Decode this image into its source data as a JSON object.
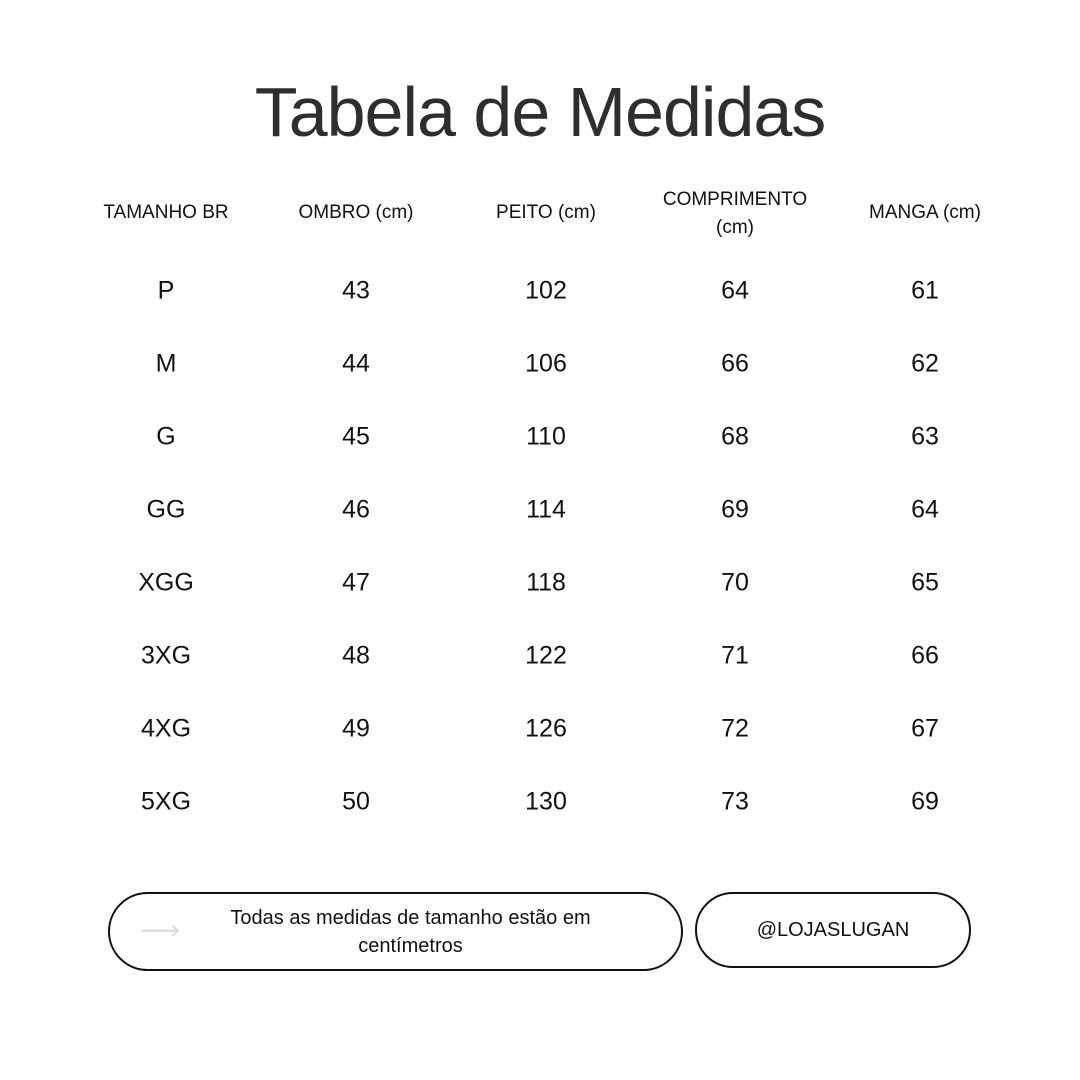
{
  "title": "Tabela de Medidas",
  "table": {
    "headers": [
      "TAMANHO BR",
      "OMBRO (cm)",
      "PEITO (cm)",
      "COMPRIMENTO (cm)",
      "MANGA (cm)"
    ],
    "rows": [
      [
        "P",
        "43",
        "102",
        "64",
        "61"
      ],
      [
        "M",
        "44",
        "106",
        "66",
        "62"
      ],
      [
        "G",
        "45",
        "110",
        "68",
        "63"
      ],
      [
        "GG",
        "46",
        "114",
        "69",
        "64"
      ],
      [
        "XGG",
        "47",
        "118",
        "70",
        "65"
      ],
      [
        "3XG",
        "48",
        "122",
        "71",
        "66"
      ],
      [
        "4XG",
        "49",
        "126",
        "72",
        "67"
      ],
      [
        "5XG",
        "50",
        "130",
        "73",
        "69"
      ]
    ]
  },
  "footer": {
    "arrow_icon": "arrow-right-icon",
    "note": "Todas as medidas de tamanho estão em centímetros",
    "handle": "@LOJASLUGAN"
  }
}
